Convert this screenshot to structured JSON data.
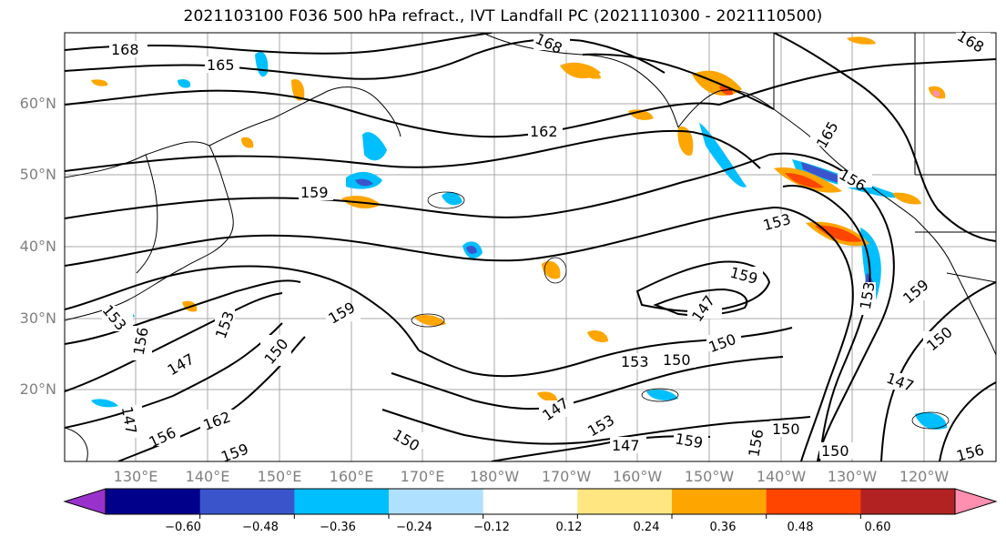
{
  "title": "2021103100 F036 500 hPa refract., IVT Landfall PC (2021110300 - 2021110500)",
  "map": {
    "lat_labels": [
      "60°N",
      "50°N",
      "40°N",
      "30°N",
      "20°N"
    ],
    "lon_labels": [
      "130°E",
      "140°E",
      "150°E",
      "160°E",
      "170°E",
      "180°W",
      "170°W",
      "160°W",
      "150°W",
      "140°W",
      "130°W",
      "120°W"
    ],
    "contour_labels": [
      "168",
      "165",
      "162",
      "159",
      "156",
      "153",
      "150",
      "147"
    ]
  },
  "colorbar": {
    "colors": [
      "#9932cc",
      "#00008b",
      "#3a55cc",
      "#00bfff",
      "#b0e0ff",
      "#ffffff",
      "#ffe680",
      "#ffa500",
      "#ff4500",
      "#b22222",
      "#ff8fb0"
    ],
    "tick_labels": [
      "−0.60",
      "−0.48",
      "−0.36",
      "−0.24",
      "−0.12",
      "0.12",
      "0.24",
      "0.36",
      "0.48",
      "0.60"
    ]
  }
}
